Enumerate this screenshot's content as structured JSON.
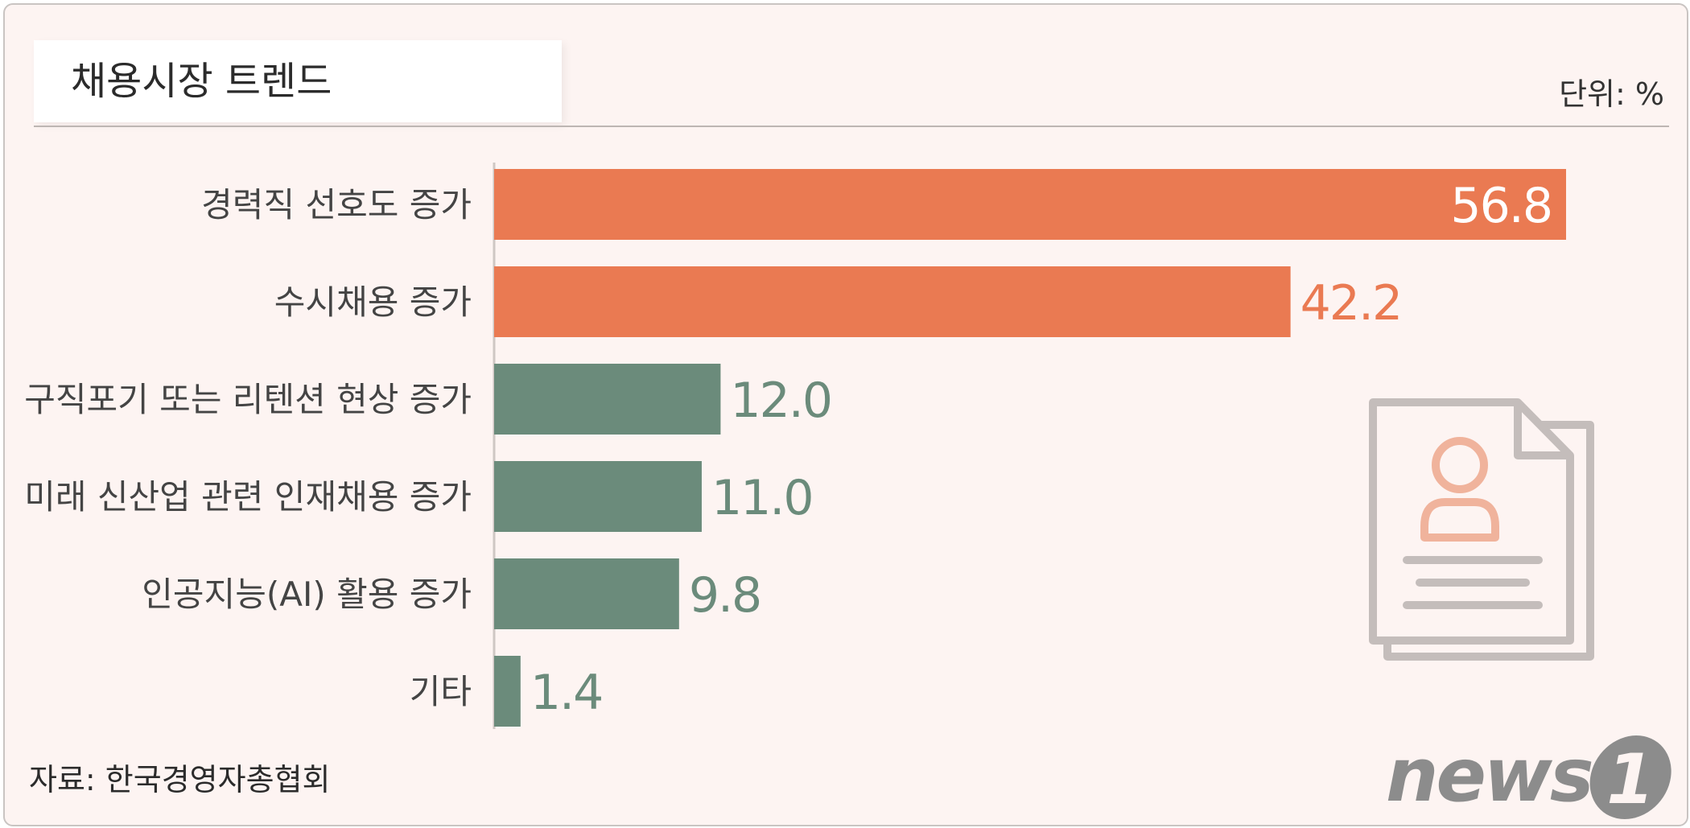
{
  "title": "채용시장 트렌드",
  "unit_label": "단위: %",
  "source": "자료: 한국경영자총협회",
  "logo_text": "news",
  "logo_digit": "1",
  "colors": {
    "accent": "#ea7a52",
    "secondary": "#6b8b7b",
    "background": "#fdf4f2",
    "icon": "#c4bdbb",
    "icon_accent": "#f0b39c"
  },
  "illustration_icon": "resume-document-icon",
  "chart_data": {
    "type": "bar",
    "orientation": "horizontal",
    "categories": [
      "경력직 선호도 증가",
      "수시채용 증가",
      "구직포기 또는 리텐션 현상 증가",
      "미래 신산업 관련 인재채용 증가",
      "인공지능(AI) 활용 증가",
      "기타"
    ],
    "values": [
      56.8,
      42.2,
      12.0,
      11.0,
      9.8,
      1.4
    ],
    "value_labels": [
      "56.8",
      "42.2",
      "12.0",
      "11.0",
      "9.8",
      "1.4"
    ],
    "highlight_top_n": 2,
    "xlim": [
      0,
      56.8
    ],
    "grid": false,
    "legend": "none"
  }
}
